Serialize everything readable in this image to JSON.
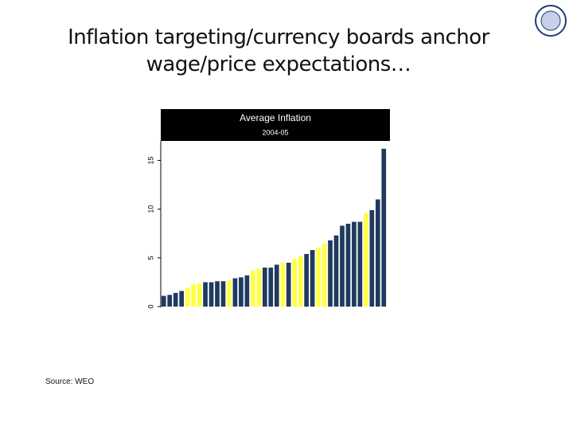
{
  "slide": {
    "title": "Inflation targeting/currency boards anchor wage/price expectations…",
    "source": "Source: WEO"
  },
  "chart_data": {
    "type": "bar",
    "title": "Average Inflation",
    "subtitle": "2004-05",
    "values": [
      1.1,
      1.2,
      1.4,
      1.6,
      1.9,
      2.3,
      2.4,
      2.5,
      2.5,
      2.6,
      2.6,
      2.7,
      2.9,
      3.0,
      3.2,
      3.7,
      3.9,
      4.0,
      4.0,
      4.3,
      4.5,
      4.5,
      4.9,
      5.2,
      5.4,
      5.8,
      6.0,
      6.5,
      6.8,
      7.3,
      8.3,
      8.5,
      8.7,
      8.7,
      9.6,
      9.9,
      11.0,
      16.2
    ],
    "colors": [
      "#1f3a5f",
      "#1f3a5f",
      "#1f3a5f",
      "#1f3a5f",
      "#ffff44",
      "#ffff44",
      "#ffff44",
      "#1f3a5f",
      "#1f3a5f",
      "#1f3a5f",
      "#1f3a5f",
      "#ffff44",
      "#1f3a5f",
      "#1f3a5f",
      "#1f3a5f",
      "#ffff44",
      "#ffff44",
      "#1f3a5f",
      "#1f3a5f",
      "#1f3a5f",
      "#ffff44",
      "#1f3a5f",
      "#ffff44",
      "#ffff44",
      "#1f3a5f",
      "#1f3a5f",
      "#ffff44",
      "#ffff44",
      "#1f3a5f",
      "#1f3a5f",
      "#1f3a5f",
      "#1f3a5f",
      "#1f3a5f",
      "#1f3a5f",
      "#ffff44",
      "#1f3a5f",
      "#1f3a5f",
      "#1f3a5f"
    ],
    "ylim": [
      0,
      17
    ],
    "yticks": [
      0,
      5,
      10,
      15
    ]
  }
}
